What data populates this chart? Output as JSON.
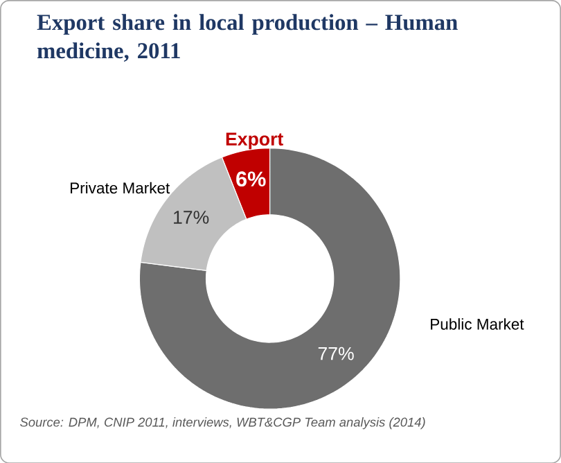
{
  "chart_data": {
    "type": "donut",
    "title": "Export share in local production – Human medicine, 2011",
    "categories": [
      "Export",
      "Public Market",
      "Private Market"
    ],
    "values": [
      6,
      77,
      17
    ],
    "value_labels": [
      "6%",
      "77%",
      "17%"
    ],
    "colors": [
      "#c00000",
      "#6e6e6e",
      "#c0c0c0"
    ],
    "annotations": [
      "Source: DPM, CNIP 2011, interviews, WBT&CGP Team analysis (2014)"
    ]
  }
}
